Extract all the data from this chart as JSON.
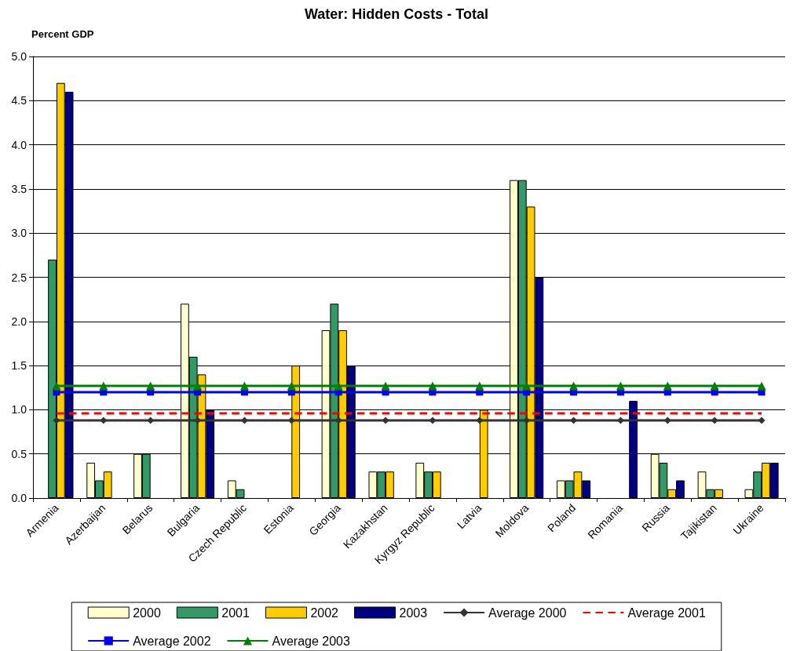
{
  "chart_data": {
    "type": "bar",
    "title": "Water: Hidden Costs - Total",
    "ylabel": "Percent GDP",
    "categories": [
      "Armenia",
      "Azerbaijan",
      "Belarus",
      "Bulgaria",
      "Czech Republic",
      "Estonia",
      "Georgia",
      "Kazakhstan",
      "Kyrgyz Republic",
      "Latvia",
      "Moldova",
      "Poland",
      "Romania",
      "Russia",
      "Tajikistan",
      "Ukraine"
    ],
    "series": [
      {
        "name": "2000",
        "color": "#ffffcc",
        "values": [
          null,
          0.4,
          0.5,
          2.2,
          0.2,
          null,
          1.9,
          0.3,
          0.4,
          null,
          3.6,
          0.2,
          null,
          0.5,
          0.3,
          0.1
        ]
      },
      {
        "name": "2001",
        "color": "#339966",
        "values": [
          2.7,
          0.2,
          0.5,
          1.6,
          0.1,
          null,
          2.2,
          0.3,
          0.3,
          null,
          3.6,
          0.2,
          null,
          0.4,
          0.1,
          0.3
        ]
      },
      {
        "name": "2002",
        "color": "#ffcc00",
        "values": [
          4.7,
          0.3,
          null,
          1.4,
          null,
          1.5,
          1.9,
          0.3,
          0.3,
          1.0,
          3.3,
          0.3,
          null,
          0.1,
          0.1,
          0.4
        ]
      },
      {
        "name": "2003",
        "color": "#000080",
        "values": [
          4.6,
          null,
          null,
          1.0,
          null,
          null,
          1.5,
          null,
          null,
          null,
          2.5,
          0.2,
          1.1,
          0.2,
          null,
          0.4
        ]
      },
      {
        "name": "Average 2000",
        "type": "line",
        "color": "#333333",
        "marker": "diamond",
        "line_style": "solid",
        "values": [
          0.88,
          0.88,
          0.88,
          0.88,
          0.88,
          0.88,
          0.88,
          0.88,
          0.88,
          0.88,
          0.88,
          0.88,
          0.88,
          0.88,
          0.88,
          0.88
        ]
      },
      {
        "name": "Average 2001",
        "type": "line",
        "color": "#ff0000",
        "marker": "none",
        "line_style": "dashed",
        "values": [
          0.96,
          0.96,
          0.96,
          0.96,
          0.96,
          0.96,
          0.96,
          0.96,
          0.96,
          0.96,
          0.96,
          0.96,
          0.96,
          0.96,
          0.96,
          0.96
        ]
      },
      {
        "name": "Average 2002",
        "type": "line",
        "color": "#0000ff",
        "marker": "square",
        "line_style": "solid",
        "values": [
          1.2,
          1.2,
          1.2,
          1.2,
          1.2,
          1.2,
          1.2,
          1.2,
          1.2,
          1.2,
          1.2,
          1.2,
          1.2,
          1.2,
          1.2,
          1.2
        ]
      },
      {
        "name": "Average 2003",
        "type": "line",
        "color": "#008000",
        "marker": "triangle",
        "line_style": "solid",
        "values": [
          1.27,
          1.27,
          1.27,
          1.27,
          1.27,
          1.27,
          1.27,
          1.27,
          1.27,
          1.27,
          1.27,
          1.27,
          1.27,
          1.27,
          1.27,
          1.27
        ]
      }
    ],
    "ylim": [
      0,
      5
    ],
    "yticks": [
      {
        "value": 0,
        "label": "0.0"
      },
      {
        "value": 0.5,
        "label": "0.5"
      },
      {
        "value": 1,
        "label": "1.0"
      },
      {
        "value": 1.5,
        "label": "1.5"
      },
      {
        "value": 2,
        "label": "2.0"
      },
      {
        "value": 2.5,
        "label": "2.5"
      },
      {
        "value": 3,
        "label": "3.0"
      },
      {
        "value": 3.5,
        "label": "3.5"
      },
      {
        "value": 4,
        "label": "4.0"
      },
      {
        "value": 4.5,
        "label": "4.5"
      },
      {
        "value": 5,
        "label": "5.0"
      }
    ],
    "grid": "y",
    "legend": "bottom"
  }
}
